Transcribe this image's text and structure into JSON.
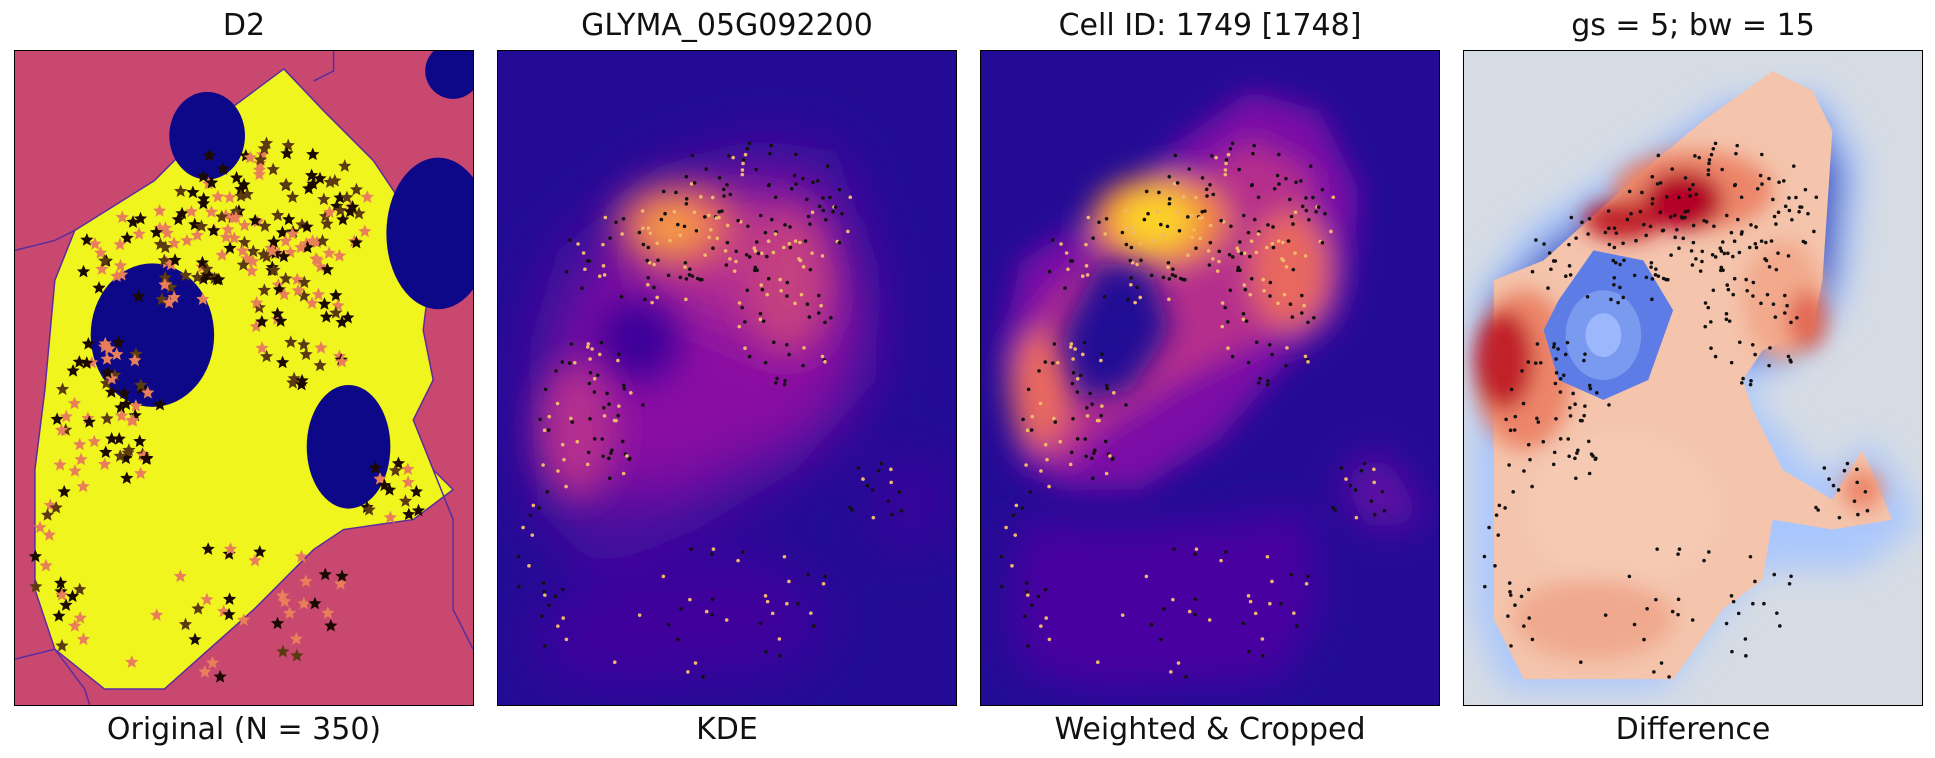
{
  "chart_data": [
    {
      "type": "heatmap",
      "title": "D2",
      "xlabel": "Original (N = 350)",
      "colors": {
        "background": "#c8486f",
        "cell": "#f0f51e",
        "nuclei": "#0d0887",
        "stars": "#e97f5a"
      }
    },
    {
      "type": "heatmap",
      "title": "GLYMA_05G092200",
      "xlabel": "KDE",
      "colormap": "plasma"
    },
    {
      "type": "heatmap",
      "title": "Cell ID: 1749 [1748]",
      "xlabel": "Weighted & Cropped",
      "colormap": "plasma"
    },
    {
      "type": "heatmap",
      "title": "gs = 5; bw = 15",
      "xlabel": "Difference",
      "colormap": "coolwarm"
    }
  ]
}
